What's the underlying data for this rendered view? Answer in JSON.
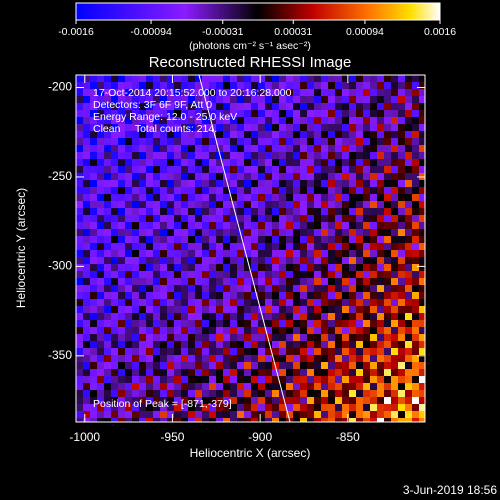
{
  "chart_data": {
    "type": "heatmap",
    "title": "Reconstructed RHESSI Image",
    "x_label": "Heliocentric X (arcsec)",
    "y_label": "Heliocentric Y (arcsec)",
    "xlim": [
      -1005,
      -806
    ],
    "ylim": [
      -387,
      -193
    ],
    "xticks": [
      -1000,
      -950,
      -900,
      -850
    ],
    "yticks": [
      -200,
      -250,
      -300,
      -350
    ],
    "colorbar": {
      "lim": [
        -0.0016,
        0.0016
      ],
      "ticks": [
        -0.0016,
        -0.00094,
        -0.00031,
        0.00031,
        0.00094,
        0.0016
      ],
      "label": "(photons cm⁻² s⁻¹ asec⁻²)"
    },
    "annotations": [
      "17-Oct-2014 20:15:52.000 to 20:16:28.000",
      "Detectors: 3F 6F 9F, Att 0",
      "Energy Range: 12.0 - 25.0 keV",
      "Clean     Total counts: 214."
    ],
    "peak_label": "Position of Peak = [-871,-379]",
    "timestamp": "3-Jun-2019 18:56"
  }
}
